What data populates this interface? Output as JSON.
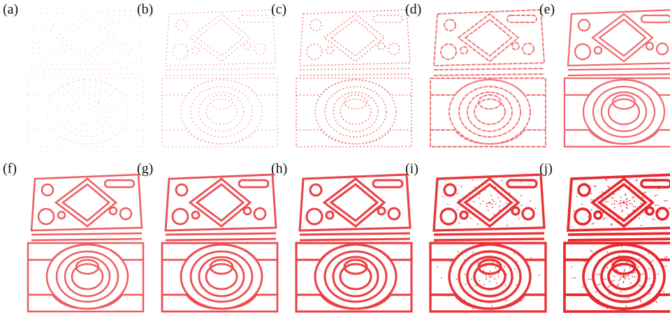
{
  "labels": [
    "(a)",
    "(b)",
    "(c)",
    "(d)",
    "(e)",
    "(f)",
    "(g)",
    "(h)",
    "(i)",
    "(j)"
  ]
}
